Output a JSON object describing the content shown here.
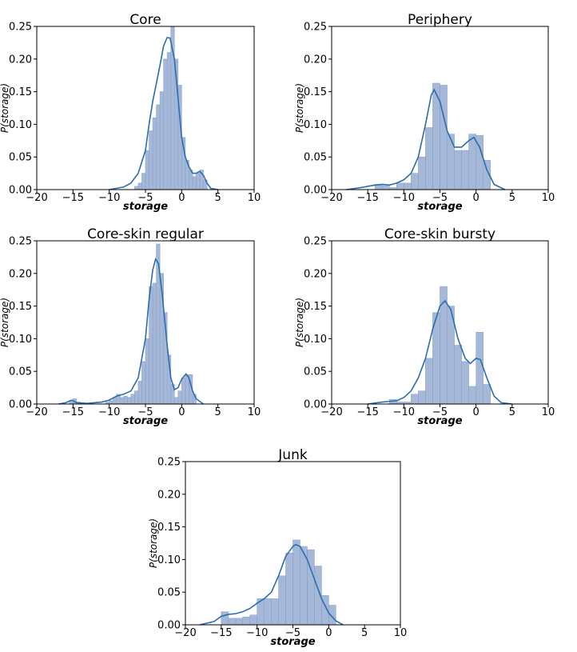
{
  "chart_data": [
    {
      "type": "bar",
      "title": "Core",
      "xlabel": "storage",
      "ylabel": "P(storage)",
      "xlim": [
        -20,
        10
      ],
      "ylim": [
        0,
        0.25
      ],
      "xticks": [
        "−20",
        "−15",
        "−10",
        "−5",
        "0",
        "5",
        "10"
      ],
      "yticks": [
        "0.00",
        "0.05",
        "0.10",
        "0.15",
        "0.20",
        "0.25"
      ],
      "bin_width": 0.5,
      "bars": [
        [
          -6.5,
          0.005
        ],
        [
          -6.0,
          0.01
        ],
        [
          -5.5,
          0.025
        ],
        [
          -5.0,
          0.06
        ],
        [
          -4.5,
          0.09
        ],
        [
          -4.0,
          0.11
        ],
        [
          -3.5,
          0.13
        ],
        [
          -3.0,
          0.15
        ],
        [
          -2.5,
          0.2
        ],
        [
          -2.0,
          0.21
        ],
        [
          -1.5,
          0.25
        ],
        [
          -1.0,
          0.2
        ],
        [
          -0.5,
          0.16
        ],
        [
          0.0,
          0.08
        ],
        [
          0.5,
          0.045
        ],
        [
          1.0,
          0.03
        ],
        [
          1.5,
          0.02
        ],
        [
          2.0,
          0.025
        ],
        [
          2.5,
          0.03
        ],
        [
          3.0,
          0.015
        ]
      ],
      "kde": [
        [
          -10,
          0
        ],
        [
          -8,
          0.004
        ],
        [
          -7,
          0.01
        ],
        [
          -6,
          0.025
        ],
        [
          -5,
          0.06
        ],
        [
          -4.5,
          0.1
        ],
        [
          -4,
          0.135
        ],
        [
          -3,
          0.19
        ],
        [
          -2.5,
          0.22
        ],
        [
          -2,
          0.233
        ],
        [
          -1.6,
          0.232
        ],
        [
          -1,
          0.2
        ],
        [
          -0.5,
          0.14
        ],
        [
          0,
          0.08
        ],
        [
          0.5,
          0.05
        ],
        [
          1,
          0.035
        ],
        [
          1.5,
          0.025
        ],
        [
          2,
          0.025
        ],
        [
          2.5,
          0.028
        ],
        [
          3,
          0.022
        ],
        [
          3.5,
          0.01
        ],
        [
          4,
          0.002
        ],
        [
          5,
          0
        ]
      ]
    },
    {
      "type": "bar",
      "title": "Periphery",
      "xlabel": "storage",
      "ylabel": "P(storage)",
      "xlim": [
        -20,
        10
      ],
      "ylim": [
        0,
        0.25
      ],
      "xticks": [
        "−20",
        "−15",
        "−10",
        "−5",
        "0",
        "5",
        "10"
      ],
      "yticks": [
        "0.00",
        "0.05",
        "0.10",
        "0.15",
        "0.20",
        "0.25"
      ],
      "bin_width": 1,
      "bars": [
        [
          -14,
          0.008
        ],
        [
          -13,
          0.006
        ],
        [
          -12,
          0.003
        ],
        [
          -11,
          0.01
        ],
        [
          -10,
          0.01
        ],
        [
          -9,
          0.025
        ],
        [
          -8,
          0.05
        ],
        [
          -7,
          0.095
        ],
        [
          -6,
          0.163
        ],
        [
          -5,
          0.16
        ],
        [
          -4,
          0.085
        ],
        [
          -3,
          0.06
        ],
        [
          -2,
          0.06
        ],
        [
          -1,
          0.085
        ],
        [
          0,
          0.083
        ],
        [
          1,
          0.045
        ]
      ],
      "kde": [
        [
          -18,
          0
        ],
        [
          -16,
          0.003
        ],
        [
          -14,
          0.007
        ],
        [
          -13,
          0.008
        ],
        [
          -12,
          0.007
        ],
        [
          -11,
          0.01
        ],
        [
          -10,
          0.015
        ],
        [
          -9,
          0.025
        ],
        [
          -8,
          0.05
        ],
        [
          -7,
          0.1
        ],
        [
          -6.2,
          0.145
        ],
        [
          -5.8,
          0.153
        ],
        [
          -5,
          0.135
        ],
        [
          -4,
          0.09
        ],
        [
          -3,
          0.065
        ],
        [
          -2,
          0.065
        ],
        [
          -1,
          0.075
        ],
        [
          -0.3,
          0.08
        ],
        [
          0.5,
          0.065
        ],
        [
          1.5,
          0.03
        ],
        [
          2.5,
          0.008
        ],
        [
          4,
          0
        ]
      ]
    },
    {
      "type": "bar",
      "title": "Core-skin regular",
      "xlabel": "storage",
      "ylabel": "P(storage)",
      "xlim": [
        -20,
        10
      ],
      "ylim": [
        0,
        0.25
      ],
      "xticks": [
        "−20",
        "−15",
        "−10",
        "−5",
        "0",
        "5",
        "10"
      ],
      "yticks": [
        "0.00",
        "0.05",
        "0.10",
        "0.15",
        "0.20",
        "0.25"
      ],
      "bin_width": 0.5,
      "bars": [
        [
          -15.5,
          0.005
        ],
        [
          -15.0,
          0.008
        ],
        [
          -14.5,
          0.003
        ],
        [
          -10.5,
          0.003
        ],
        [
          -10.0,
          0.005
        ],
        [
          -9.5,
          0.01
        ],
        [
          -9.0,
          0.015
        ],
        [
          -8.5,
          0.01
        ],
        [
          -8.0,
          0.012
        ],
        [
          -7.5,
          0.01
        ],
        [
          -7.0,
          0.015
        ],
        [
          -6.5,
          0.02
        ],
        [
          -6.0,
          0.035
        ],
        [
          -5.5,
          0.065
        ],
        [
          -5.0,
          0.1
        ],
        [
          -4.5,
          0.18
        ],
        [
          -4.0,
          0.185
        ],
        [
          -3.5,
          0.245
        ],
        [
          -3.0,
          0.2
        ],
        [
          -2.5,
          0.14
        ],
        [
          -2.0,
          0.075
        ],
        [
          -1.5,
          0.03
        ],
        [
          -1.0,
          0.01
        ],
        [
          -0.5,
          0.02
        ],
        [
          0.0,
          0.04
        ],
        [
          0.5,
          0.045
        ],
        [
          1.0,
          0.045
        ],
        [
          1.5,
          0.015
        ]
      ],
      "kde": [
        [
          -17,
          0
        ],
        [
          -16,
          0.002
        ],
        [
          -15.2,
          0.006
        ],
        [
          -14.5,
          0.002
        ],
        [
          -13,
          0.001
        ],
        [
          -11,
          0.003
        ],
        [
          -10,
          0.006
        ],
        [
          -9,
          0.012
        ],
        [
          -8,
          0.015
        ],
        [
          -7,
          0.02
        ],
        [
          -6,
          0.04
        ],
        [
          -5,
          0.1
        ],
        [
          -4.5,
          0.16
        ],
        [
          -4,
          0.205
        ],
        [
          -3.6,
          0.222
        ],
        [
          -3.2,
          0.215
        ],
        [
          -2.7,
          0.17
        ],
        [
          -2,
          0.09
        ],
        [
          -1.5,
          0.04
        ],
        [
          -1,
          0.022
        ],
        [
          -0.5,
          0.025
        ],
        [
          0,
          0.038
        ],
        [
          0.6,
          0.046
        ],
        [
          1,
          0.04
        ],
        [
          1.5,
          0.02
        ],
        [
          2,
          0.008
        ],
        [
          3,
          0
        ]
      ]
    },
    {
      "type": "bar",
      "title": "Core-skin bursty",
      "xlabel": "storage",
      "ylabel": "P(storage)",
      "xlim": [
        -20,
        10
      ],
      "ylim": [
        0,
        0.25
      ],
      "xticks": [
        "−20",
        "−15",
        "−10",
        "−5",
        "0",
        "5",
        "10"
      ],
      "yticks": [
        "0.00",
        "0.05",
        "0.10",
        "0.15",
        "0.20",
        "0.25"
      ],
      "bin_width": 1,
      "bars": [
        [
          -12,
          0.007
        ],
        [
          -11,
          0.003
        ],
        [
          -10,
          0.003
        ],
        [
          -9,
          0.015
        ],
        [
          -8,
          0.02
        ],
        [
          -7,
          0.07
        ],
        [
          -6,
          0.14
        ],
        [
          -5,
          0.18
        ],
        [
          -4,
          0.15
        ],
        [
          -3,
          0.09
        ],
        [
          -2,
          0.065
        ],
        [
          -1,
          0.027
        ],
        [
          0,
          0.11
        ],
        [
          1,
          0.03
        ]
      ],
      "kde": [
        [
          -15,
          0
        ],
        [
          -13,
          0.003
        ],
        [
          -12,
          0.004
        ],
        [
          -11,
          0.005
        ],
        [
          -10,
          0.01
        ],
        [
          -9,
          0.02
        ],
        [
          -8,
          0.04
        ],
        [
          -7,
          0.07
        ],
        [
          -6,
          0.115
        ],
        [
          -5,
          0.15
        ],
        [
          -4.3,
          0.158
        ],
        [
          -3.5,
          0.145
        ],
        [
          -2.5,
          0.1
        ],
        [
          -1.5,
          0.07
        ],
        [
          -0.8,
          0.062
        ],
        [
          0,
          0.07
        ],
        [
          0.6,
          0.068
        ],
        [
          1.5,
          0.04
        ],
        [
          2.5,
          0.012
        ],
        [
          3.5,
          0.002
        ],
        [
          5,
          0
        ]
      ]
    },
    {
      "type": "bar",
      "title": "Junk",
      "xlabel": "storage",
      "ylabel": "P(storage)",
      "xlim": [
        -20,
        10
      ],
      "ylim": [
        0,
        0.25
      ],
      "xticks": [
        "−20",
        "−15",
        "−10",
        "−5",
        "0",
        "5",
        "10"
      ],
      "yticks": [
        "0.00",
        "0.05",
        "0.10",
        "0.15",
        "0.20",
        "0.25"
      ],
      "bin_width": 1,
      "bars": [
        [
          -15,
          0.02
        ],
        [
          -14,
          0.01
        ],
        [
          -13,
          0.01
        ],
        [
          -12,
          0.012
        ],
        [
          -11,
          0.015
        ],
        [
          -10,
          0.04
        ],
        [
          -9,
          0.04
        ],
        [
          -8,
          0.04
        ],
        [
          -7,
          0.075
        ],
        [
          -6,
          0.11
        ],
        [
          -5,
          0.13
        ],
        [
          -4,
          0.12
        ],
        [
          -3,
          0.115
        ],
        [
          -2,
          0.09
        ],
        [
          -1,
          0.045
        ],
        [
          0,
          0.03
        ]
      ],
      "kde": [
        [
          -18,
          0
        ],
        [
          -16,
          0.005
        ],
        [
          -15,
          0.013
        ],
        [
          -14,
          0.016
        ],
        [
          -13,
          0.017
        ],
        [
          -12,
          0.02
        ],
        [
          -11,
          0.025
        ],
        [
          -10,
          0.033
        ],
        [
          -9,
          0.04
        ],
        [
          -8,
          0.05
        ],
        [
          -7,
          0.075
        ],
        [
          -6,
          0.105
        ],
        [
          -5,
          0.12
        ],
        [
          -4.6,
          0.123
        ],
        [
          -4,
          0.12
        ],
        [
          -3,
          0.1
        ],
        [
          -2,
          0.07
        ],
        [
          -1,
          0.04
        ],
        [
          0,
          0.018
        ],
        [
          1,
          0.006
        ],
        [
          2,
          0
        ]
      ]
    }
  ]
}
